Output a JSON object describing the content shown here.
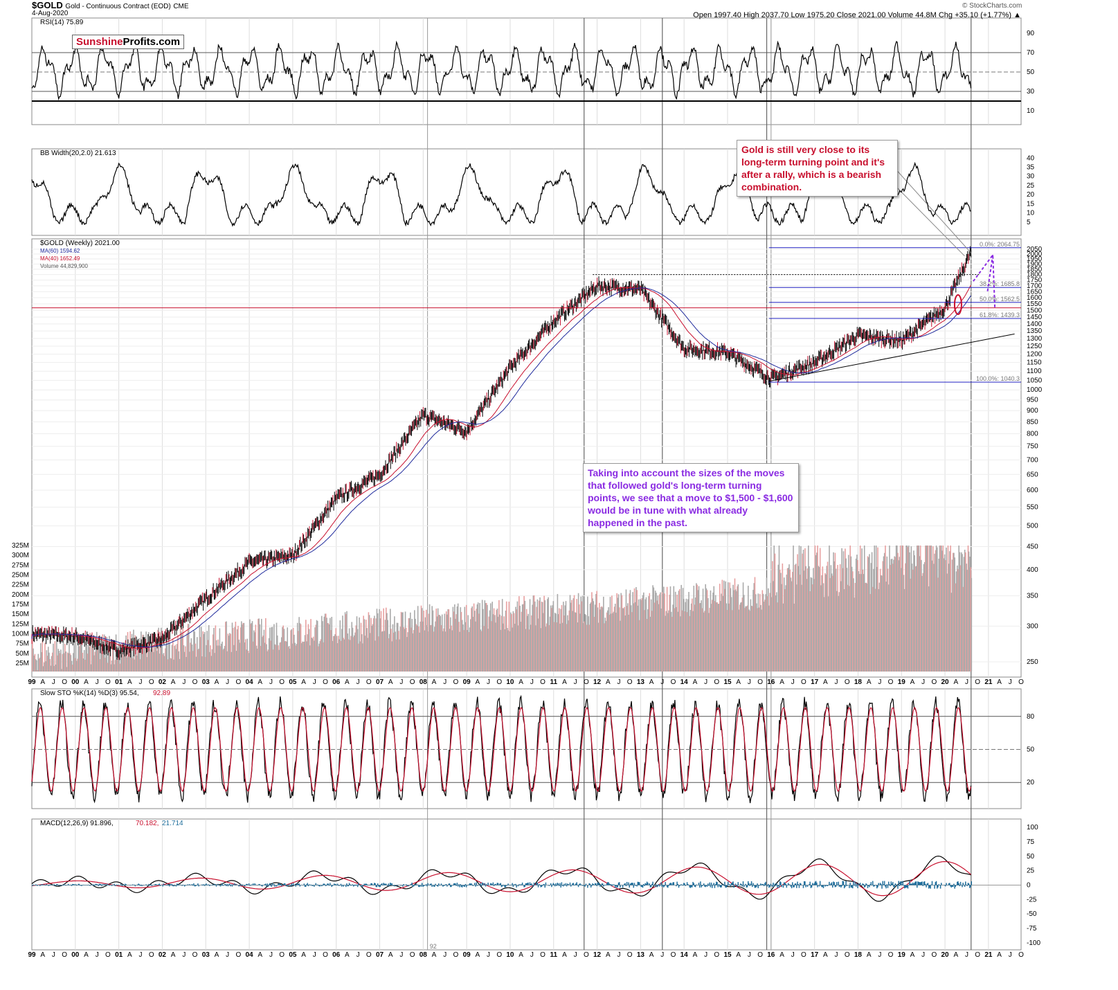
{
  "header": {
    "symbol": "$GOLD",
    "name": "Gold - Continuous Contract (EOD)",
    "exchange": "CME",
    "date": "4-Aug-2020",
    "ohlc": "Open 1997.40  High 2037.70  Low 1975.20  Close 2021.00  Volume 44.8M  Chg +35.10 (+1.77%) ▲",
    "credit": "© StockCharts.com"
  },
  "logo": {
    "part1": "Sunshine",
    "part2": "Profits.com",
    "color1": "#c8102e"
  },
  "notes": {
    "red": "Gold is still very close to its long-term turning point and it's after a rally, which is a bearish combination.",
    "purple": "Taking into account the sizes of the moves that followed gold's long-term turning points, we see that a move to $1,500 - $1,600 would be in tune with what already happened in the past."
  },
  "panels": {
    "rsi": {
      "label": "RSI(14) 75.89",
      "ticks": [
        "90",
        "70",
        "50",
        "30",
        "10"
      ]
    },
    "bbw": {
      "label": "BB Width(20,2.0) 21.613",
      "ticks": [
        "40",
        "35",
        "30",
        "25",
        "20",
        "15",
        "10",
        "5"
      ]
    },
    "price": {
      "labels": [
        "$GOLD (Weekly) 2021.00",
        "MA(60) 1594.62",
        "MA(40) 1652.49",
        "Volume 44,829,900"
      ],
      "ticks": [
        "2050",
        "2000",
        "1950",
        "1900",
        "1850",
        "1800",
        "1750",
        "1700",
        "1650",
        "1600",
        "1550",
        "1500",
        "1450",
        "1400",
        "1350",
        "1300",
        "1250",
        "1200",
        "1150",
        "1100",
        "1050",
        "1000",
        "950",
        "900",
        "850",
        "800",
        "750",
        "700",
        "650",
        "600",
        "550",
        "500",
        "450",
        "400",
        "350",
        "300",
        "250"
      ],
      "vol_ticks": [
        "325M",
        "300M",
        "275M",
        "250M",
        "225M",
        "200M",
        "175M",
        "150M",
        "125M",
        "100M",
        "75M",
        "50M",
        "25M"
      ],
      "fib": [
        "0.0%: 2064.75",
        "38.2%: 1685.8",
        "50.0%: 1562.5",
        "61.8%: 1439.3",
        "100.0%: 1040.3"
      ]
    },
    "sto": {
      "label_a": "Slow STO %K(14) %D(3) 95.54,",
      "label_b": "92.89",
      "ticks": [
        "80",
        "50",
        "20"
      ]
    },
    "macd": {
      "label_a": "MACD(12,26,9) 91.896,",
      "label_b": "70.182,",
      "label_c": "21.714",
      "ticks": [
        "100",
        "75",
        "50",
        "25",
        "0",
        "-25",
        "-50",
        "-75",
        "-100"
      ]
    }
  },
  "x_axis": {
    "labels": [
      "99",
      "A",
      "J",
      "O",
      "00",
      "A",
      "J",
      "O",
      "01",
      "A",
      "J",
      "O",
      "02",
      "A",
      "J",
      "O",
      "03",
      "A",
      "J",
      "O",
      "04",
      "A",
      "J",
      "O",
      "05",
      "A",
      "J",
      "O",
      "06",
      "A",
      "J",
      "O",
      "07",
      "A",
      "J",
      "O",
      "08",
      "A",
      "J",
      "O",
      "09",
      "A",
      "J",
      "O",
      "10",
      "A",
      "J",
      "O",
      "11",
      "A",
      "J",
      "O",
      "12",
      "A",
      "J",
      "O",
      "13",
      "A",
      "J",
      "O",
      "14",
      "A",
      "J",
      "O",
      "15",
      "A",
      "J",
      "O",
      "16",
      "A",
      "J",
      "O",
      "17",
      "A",
      "J",
      "O",
      "18",
      "A",
      "J",
      "O",
      "19",
      "A",
      "J",
      "O",
      "20",
      "A",
      "J",
      "O",
      "21",
      "A",
      "J",
      "O"
    ],
    "marker": "92"
  },
  "chart_data": {
    "type": "line",
    "title": "Gold - Continuous Contract (EOD)",
    "x": [
      "1999",
      "2000",
      "2001",
      "2002",
      "2003",
      "2004",
      "2005",
      "2006",
      "2007",
      "2008",
      "2009",
      "2010",
      "2011",
      "2012",
      "2013",
      "2014",
      "2015",
      "2016",
      "2017",
      "2018",
      "2019",
      "2020",
      "2020.6"
    ],
    "series": [
      {
        "name": "$GOLD (Weekly)",
        "values": [
          288,
          285,
          265,
          280,
          345,
          415,
          430,
          575,
          650,
          880,
          810,
          1120,
          1420,
          1700,
          1670,
          1235,
          1210,
          1060,
          1150,
          1320,
          1285,
          1520,
          2021
        ]
      }
    ],
    "turning_points": [
      "2011.7",
      "2013.5",
      "2015.9",
      "2020.6"
    ],
    "ylim": [
      250,
      2100
    ],
    "y_scale": "log",
    "colors": {
      "price": "#000000",
      "ma40": "#c8102e",
      "ma60": "#1f2a9c",
      "fib": "#2020c0",
      "annotation_purple": "#8a2be2",
      "annotation_red": "#c8102e"
    }
  }
}
